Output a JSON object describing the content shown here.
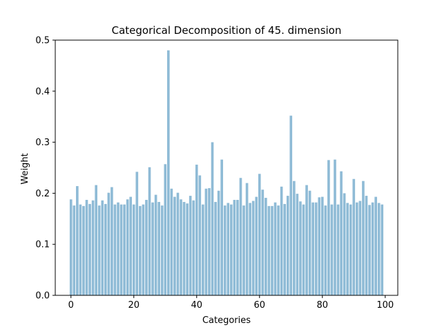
{
  "chart_data": {
    "type": "bar",
    "title": "Categorical Decomposition of 45. dimension",
    "xlabel": "Categories",
    "ylabel": "Weight",
    "xlim": [
      -5,
      104
    ],
    "ylim": [
      0,
      0.5
    ],
    "xticks": [
      "0",
      "20",
      "40",
      "60",
      "80",
      "100"
    ],
    "xtick_values": [
      0,
      20,
      40,
      60,
      80,
      100
    ],
    "yticks": [
      "0.0",
      "0.1",
      "0.2",
      "0.3",
      "0.4",
      "0.5"
    ],
    "ytick_values": [
      0.0,
      0.1,
      0.2,
      0.3,
      0.4,
      0.5
    ],
    "grid": false,
    "bar_color": "#8fbbd6",
    "categories": [
      0,
      1,
      2,
      3,
      4,
      5,
      6,
      7,
      8,
      9,
      10,
      11,
      12,
      13,
      14,
      15,
      16,
      17,
      18,
      19,
      20,
      21,
      22,
      23,
      24,
      25,
      26,
      27,
      28,
      29,
      30,
      31,
      32,
      33,
      34,
      35,
      36,
      37,
      38,
      39,
      40,
      41,
      42,
      43,
      44,
      45,
      46,
      47,
      48,
      49,
      50,
      51,
      52,
      53,
      54,
      55,
      56,
      57,
      58,
      59,
      60,
      61,
      62,
      63,
      64,
      65,
      66,
      67,
      68,
      69,
      70,
      71,
      72,
      73,
      74,
      75,
      76,
      77,
      78,
      79,
      80,
      81,
      82,
      83,
      84,
      85,
      86,
      87,
      88,
      89,
      90,
      91,
      92,
      93,
      94,
      95,
      96,
      97,
      98,
      99
    ],
    "values": [
      0.188,
      0.176,
      0.214,
      0.178,
      0.175,
      0.187,
      0.179,
      0.186,
      0.216,
      0.176,
      0.186,
      0.179,
      0.201,
      0.212,
      0.178,
      0.182,
      0.178,
      0.178,
      0.188,
      0.193,
      0.178,
      0.242,
      0.175,
      0.178,
      0.187,
      0.251,
      0.182,
      0.197,
      0.183,
      0.176,
      0.257,
      0.48,
      0.209,
      0.193,
      0.201,
      0.188,
      0.183,
      0.18,
      0.195,
      0.186,
      0.256,
      0.235,
      0.178,
      0.209,
      0.21,
      0.3,
      0.183,
      0.205,
      0.266,
      0.176,
      0.181,
      0.178,
      0.187,
      0.187,
      0.23,
      0.176,
      0.22,
      0.181,
      0.185,
      0.193,
      0.238,
      0.207,
      0.191,
      0.175,
      0.175,
      0.182,
      0.176,
      0.213,
      0.179,
      0.195,
      0.352,
      0.224,
      0.199,
      0.184,
      0.178,
      0.216,
      0.205,
      0.182,
      0.182,
      0.192,
      0.193,
      0.176,
      0.265,
      0.178,
      0.266,
      0.178,
      0.243,
      0.2,
      0.181,
      0.178,
      0.228,
      0.182,
      0.185,
      0.224,
      0.195,
      0.177,
      0.182,
      0.193,
      0.181,
      0.178
    ]
  }
}
